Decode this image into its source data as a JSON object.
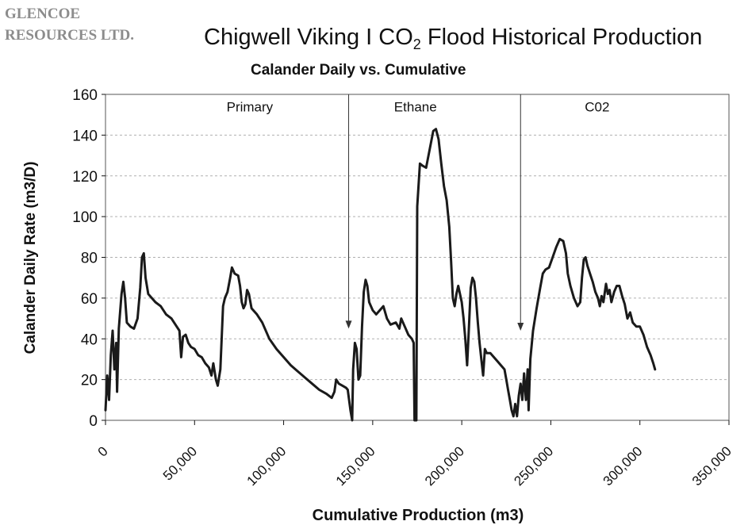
{
  "company": {
    "line1": "GLENCOE",
    "line2": "RESOURCES LTD."
  },
  "title": {
    "before": "Chigwell Viking I CO",
    "subscript": "2",
    "after": " Flood Historical Production"
  },
  "colors": {
    "line": "#1a1a1a",
    "grid": "#b0b0b0",
    "frame": "#555555"
  },
  "chart_data": {
    "type": "line",
    "title": "Chigwell Viking I CO2 Flood Historical Production",
    "subtitle": "Calander Daily vs. Cumulative",
    "xlabel": "Cumulative Production (m3)",
    "ylabel": "Calander Daily Rate (m3/D)",
    "xlim": [
      0,
      350000
    ],
    "ylim": [
      0,
      160
    ],
    "x_ticks": [
      0,
      50000,
      100000,
      150000,
      200000,
      250000,
      300000,
      350000
    ],
    "x_tick_labels": [
      "0",
      "50,000",
      "100,000",
      "150,000",
      "200,000",
      "250,000",
      "300,000",
      "350,000"
    ],
    "y_ticks": [
      0,
      20,
      40,
      60,
      80,
      100,
      120,
      140,
      160
    ],
    "y_tick_labels": [
      "0",
      "20",
      "40",
      "60",
      "80",
      "100",
      "120",
      "140",
      "160"
    ],
    "grid": "horizontal-dashed",
    "annotations": [
      {
        "label": "Primary",
        "x": 81000,
        "y": 154
      },
      {
        "label": "Ethane",
        "x": 174000,
        "y": 154
      },
      {
        "label": "C02",
        "x": 276000,
        "y": 154
      }
    ],
    "phase_arrows": [
      {
        "x": 136500,
        "y_top": 160,
        "y_bottom": 45
      },
      {
        "x": 233000,
        "y_top": 160,
        "y_bottom": 44
      }
    ],
    "series": [
      {
        "points": [
          [
            0,
            5
          ],
          [
            1000,
            22
          ],
          [
            2000,
            10
          ],
          [
            3000,
            32
          ],
          [
            4000,
            44
          ],
          [
            5000,
            25
          ],
          [
            6000,
            38
          ],
          [
            6500,
            14
          ],
          [
            7500,
            45
          ],
          [
            9000,
            62
          ],
          [
            10000,
            68
          ],
          [
            11000,
            60
          ],
          [
            12000,
            48
          ],
          [
            14000,
            46
          ],
          [
            16000,
            45
          ],
          [
            18000,
            50
          ],
          [
            19500,
            65
          ],
          [
            20500,
            80
          ],
          [
            21500,
            82
          ],
          [
            22500,
            70
          ],
          [
            24000,
            62
          ],
          [
            26000,
            60
          ],
          [
            28000,
            58
          ],
          [
            31000,
            56
          ],
          [
            34000,
            52
          ],
          [
            37000,
            50
          ],
          [
            40000,
            46
          ],
          [
            41500,
            44
          ],
          [
            42500,
            31
          ],
          [
            43500,
            41
          ],
          [
            45000,
            42
          ],
          [
            46500,
            38
          ],
          [
            48000,
            36
          ],
          [
            50000,
            35
          ],
          [
            52000,
            32
          ],
          [
            54000,
            31
          ],
          [
            56000,
            28
          ],
          [
            58000,
            26
          ],
          [
            59500,
            22
          ],
          [
            60500,
            28
          ],
          [
            62000,
            20
          ],
          [
            63000,
            17
          ],
          [
            64500,
            25
          ],
          [
            66000,
            56
          ],
          [
            67000,
            60
          ],
          [
            68500,
            63
          ],
          [
            70000,
            70
          ],
          [
            71000,
            75
          ],
          [
            72500,
            72
          ],
          [
            74500,
            71
          ],
          [
            75500,
            66
          ],
          [
            76500,
            58
          ],
          [
            77500,
            55
          ],
          [
            78500,
            57
          ],
          [
            79500,
            64
          ],
          [
            80500,
            62
          ],
          [
            82000,
            55
          ],
          [
            85000,
            52
          ],
          [
            88000,
            48
          ],
          [
            92000,
            40
          ],
          [
            96000,
            35
          ],
          [
            100000,
            31
          ],
          [
            104000,
            27
          ],
          [
            108000,
            24
          ],
          [
            112000,
            21
          ],
          [
            116000,
            18
          ],
          [
            120000,
            15
          ],
          [
            124000,
            13
          ],
          [
            127000,
            11
          ],
          [
            128500,
            14
          ],
          [
            129500,
            20
          ],
          [
            131000,
            18
          ],
          [
            133000,
            17
          ],
          [
            135000,
            16
          ],
          [
            136000,
            15
          ],
          [
            137500,
            5
          ],
          [
            138500,
            0
          ],
          [
            139000,
            25
          ],
          [
            140000,
            38
          ],
          [
            141000,
            35
          ],
          [
            142000,
            20
          ],
          [
            143000,
            22
          ],
          [
            144000,
            46
          ],
          [
            145000,
            63
          ],
          [
            146000,
            69
          ],
          [
            147000,
            66
          ],
          [
            148000,
            58
          ],
          [
            150000,
            54
          ],
          [
            152000,
            52
          ],
          [
            154000,
            54
          ],
          [
            156000,
            56
          ],
          [
            158000,
            50
          ],
          [
            160000,
            47
          ],
          [
            163000,
            48
          ],
          [
            165000,
            45
          ],
          [
            166000,
            50
          ],
          [
            168000,
            46
          ],
          [
            170000,
            42
          ],
          [
            172000,
            40
          ],
          [
            173000,
            38
          ],
          [
            173500,
            0
          ],
          [
            174500,
            0
          ],
          [
            175000,
            105
          ],
          [
            176500,
            126
          ],
          [
            178000,
            125
          ],
          [
            180000,
            124
          ],
          [
            182000,
            133
          ],
          [
            184000,
            142
          ],
          [
            185500,
            143
          ],
          [
            187000,
            138
          ],
          [
            188500,
            126
          ],
          [
            190000,
            115
          ],
          [
            191500,
            108
          ],
          [
            193000,
            95
          ],
          [
            194000,
            78
          ],
          [
            195000,
            60
          ],
          [
            196000,
            56
          ],
          [
            197000,
            62
          ],
          [
            198000,
            66
          ],
          [
            199000,
            62
          ],
          [
            200000,
            58
          ],
          [
            201000,
            50
          ],
          [
            202000,
            40
          ],
          [
            203000,
            27
          ],
          [
            204000,
            45
          ],
          [
            205000,
            65
          ],
          [
            206000,
            70
          ],
          [
            207000,
            68
          ],
          [
            208000,
            60
          ],
          [
            209000,
            48
          ],
          [
            210000,
            38
          ],
          [
            211000,
            30
          ],
          [
            212000,
            22
          ],
          [
            213000,
            35
          ],
          [
            214000,
            33
          ],
          [
            216000,
            33
          ],
          [
            218000,
            31
          ],
          [
            220000,
            29
          ],
          [
            222000,
            27
          ],
          [
            224000,
            25
          ],
          [
            225000,
            20
          ],
          [
            226000,
            15
          ],
          [
            227000,
            10
          ],
          [
            228000,
            5
          ],
          [
            229000,
            2
          ],
          [
            230000,
            8
          ],
          [
            231000,
            2
          ],
          [
            232000,
            12
          ],
          [
            233000,
            18
          ],
          [
            234000,
            10
          ],
          [
            235000,
            23
          ],
          [
            236000,
            10
          ],
          [
            237000,
            25
          ],
          [
            237500,
            5
          ],
          [
            238500,
            30
          ],
          [
            240000,
            44
          ],
          [
            242000,
            55
          ],
          [
            244000,
            65
          ],
          [
            245500,
            72
          ],
          [
            247000,
            74
          ],
          [
            249000,
            75
          ],
          [
            251000,
            80
          ],
          [
            253000,
            85
          ],
          [
            255000,
            89
          ],
          [
            257000,
            88
          ],
          [
            258500,
            82
          ],
          [
            259500,
            72
          ],
          [
            261000,
            66
          ],
          [
            263000,
            60
          ],
          [
            265000,
            56
          ],
          [
            266500,
            58
          ],
          [
            267500,
            70
          ],
          [
            268500,
            79
          ],
          [
            269500,
            80
          ],
          [
            270500,
            76
          ],
          [
            272000,
            72
          ],
          [
            273500,
            68
          ],
          [
            275000,
            63
          ],
          [
            276500,
            60
          ],
          [
            277500,
            56
          ],
          [
            278500,
            61
          ],
          [
            279500,
            58
          ],
          [
            281000,
            67
          ],
          [
            282000,
            62
          ],
          [
            283000,
            64
          ],
          [
            284000,
            58
          ],
          [
            285500,
            63
          ],
          [
            287000,
            66
          ],
          [
            288500,
            66
          ],
          [
            290000,
            61
          ],
          [
            291500,
            57
          ],
          [
            293000,
            50
          ],
          [
            294500,
            53
          ],
          [
            296000,
            48
          ],
          [
            298000,
            46
          ],
          [
            300000,
            46
          ],
          [
            302000,
            42
          ],
          [
            304000,
            36
          ],
          [
            306000,
            32
          ],
          [
            307500,
            28
          ],
          [
            308500,
            25
          ]
        ]
      }
    ]
  }
}
